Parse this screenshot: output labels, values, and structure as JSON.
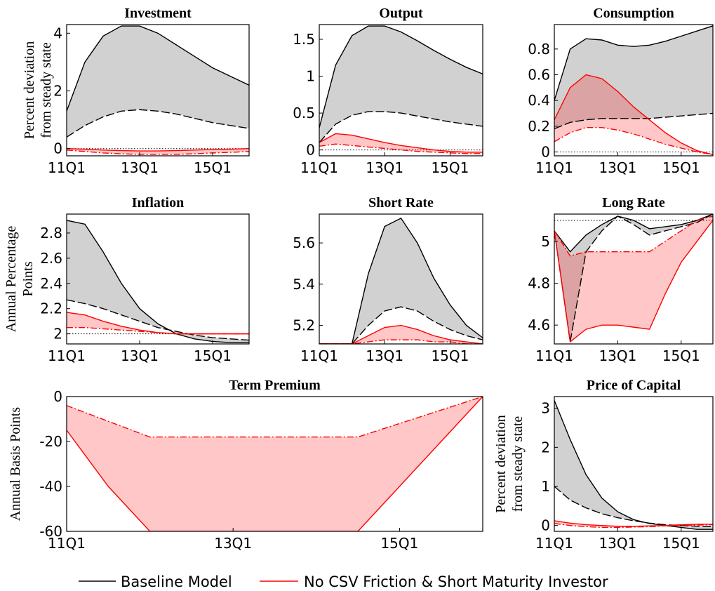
{
  "chart_data": [
    {
      "type": "line",
      "title": "Investment",
      "ylabel": [
        "Percent deviation",
        "from steady state"
      ],
      "categories": [
        "11Q1",
        null,
        null,
        null,
        "13Q1",
        null,
        null,
        null,
        "15Q1",
        null,
        null
      ],
      "ylim": [
        -0.25,
        4.3
      ],
      "yticks": [
        0,
        2,
        4
      ],
      "refline": 0,
      "series": [
        {
          "color": "#000000",
          "style": "solid",
          "values": [
            1.3,
            3.0,
            3.9,
            4.25,
            4.25,
            4.0,
            3.6,
            3.2,
            2.8,
            2.5,
            2.2
          ]
        },
        {
          "color": "#000000",
          "style": "dashed",
          "values": [
            0.4,
            0.8,
            1.1,
            1.3,
            1.35,
            1.3,
            1.2,
            1.05,
            0.9,
            0.8,
            0.7
          ]
        },
        {
          "color": "#ff0000",
          "style": "solid",
          "values": [
            0.0,
            -0.02,
            -0.05,
            -0.07,
            -0.08,
            -0.08,
            -0.07,
            -0.05,
            -0.03,
            -0.02,
            0.0
          ]
        },
        {
          "color": "#ff0000",
          "style": "dashdot",
          "values": [
            -0.05,
            -0.1,
            -0.15,
            -0.18,
            -0.2,
            -0.2,
            -0.2,
            -0.18,
            -0.15,
            -0.13,
            -0.1
          ]
        }
      ]
    },
    {
      "type": "line",
      "title": "Output",
      "categories": [
        "11Q1",
        null,
        null,
        null,
        "13Q1",
        null,
        null,
        null,
        "15Q1",
        null,
        null
      ],
      "ylim": [
        -0.08,
        1.7
      ],
      "yticks": [
        0,
        0.5,
        1,
        1.5
      ],
      "refline": 0,
      "series": [
        {
          "color": "#000000",
          "style": "solid",
          "values": [
            0.3,
            1.15,
            1.55,
            1.68,
            1.68,
            1.6,
            1.48,
            1.35,
            1.23,
            1.12,
            1.03
          ]
        },
        {
          "color": "#000000",
          "style": "dashed",
          "values": [
            0.1,
            0.35,
            0.47,
            0.52,
            0.52,
            0.5,
            0.46,
            0.42,
            0.38,
            0.35,
            0.32
          ]
        },
        {
          "color": "#ff0000",
          "style": "solid",
          "values": [
            0.1,
            0.22,
            0.2,
            0.15,
            0.1,
            0.06,
            0.03,
            0.0,
            -0.02,
            -0.03,
            -0.03
          ]
        },
        {
          "color": "#ff0000",
          "style": "dashdot",
          "values": [
            0.05,
            0.08,
            0.06,
            0.04,
            0.02,
            0.0,
            -0.02,
            -0.03,
            -0.04,
            -0.05,
            -0.05
          ]
        }
      ]
    },
    {
      "type": "line",
      "title": "Consumption",
      "categories": [
        "11Q1",
        null,
        null,
        null,
        "13Q1",
        null,
        null,
        null,
        "15Q1",
        null,
        null
      ],
      "ylim": [
        -0.03,
        0.99
      ],
      "yticks": [
        0,
        0.2,
        0.4,
        0.6,
        0.8
      ],
      "refline": 0,
      "series": [
        {
          "color": "#000000",
          "style": "solid",
          "values": [
            0.4,
            0.8,
            0.88,
            0.87,
            0.83,
            0.82,
            0.83,
            0.86,
            0.9,
            0.94,
            0.98
          ]
        },
        {
          "color": "#000000",
          "style": "dashed",
          "values": [
            0.18,
            0.23,
            0.25,
            0.26,
            0.26,
            0.26,
            0.26,
            0.27,
            0.28,
            0.29,
            0.3
          ]
        },
        {
          "color": "#ff0000",
          "style": "solid",
          "values": [
            0.25,
            0.5,
            0.6,
            0.57,
            0.47,
            0.35,
            0.25,
            0.15,
            0.07,
            0.01,
            -0.02
          ]
        },
        {
          "color": "#ff0000",
          "style": "dashdot",
          "values": [
            0.08,
            0.15,
            0.19,
            0.19,
            0.17,
            0.14,
            0.1,
            0.06,
            0.03,
            0.0,
            -0.02
          ]
        }
      ]
    },
    {
      "type": "line",
      "title": "Inflation",
      "ylabel": [
        "Annual Percentage",
        "Points"
      ],
      "categories": [
        "11Q1",
        null,
        null,
        null,
        "13Q1",
        null,
        null,
        null,
        "15Q1",
        null,
        null
      ],
      "ylim": [
        1.92,
        2.95
      ],
      "yticks": [
        2,
        2.2,
        2.4,
        2.6,
        2.8
      ],
      "refline": 2,
      "series": [
        {
          "color": "#000000",
          "style": "solid",
          "values": [
            2.9,
            2.87,
            2.65,
            2.4,
            2.2,
            2.08,
            2.0,
            1.96,
            1.94,
            1.93,
            1.93
          ]
        },
        {
          "color": "#000000",
          "style": "dashed",
          "values": [
            2.27,
            2.24,
            2.2,
            2.15,
            2.1,
            2.05,
            2.02,
            1.99,
            1.97,
            1.96,
            1.95
          ]
        },
        {
          "color": "#ff0000",
          "style": "solid",
          "values": [
            2.17,
            2.15,
            2.1,
            2.06,
            2.03,
            2.01,
            2.0,
            2.0,
            2.0,
            2.0,
            2.0
          ]
        },
        {
          "color": "#ff0000",
          "style": "dashdot",
          "values": [
            2.05,
            2.05,
            2.04,
            2.03,
            2.02,
            2.01,
            2.0,
            2.0,
            2.0,
            2.0,
            2.0
          ]
        }
      ]
    },
    {
      "type": "line",
      "title": "Short Rate",
      "categories": [
        "11Q1",
        null,
        null,
        null,
        "13Q1",
        null,
        null,
        null,
        "15Q1",
        null,
        null
      ],
      "ylim": [
        5.11,
        5.74
      ],
      "yticks": [
        5.2,
        5.4,
        5.6
      ],
      "refline": 5.11,
      "series": [
        {
          "color": "#000000",
          "style": "solid",
          "values": [
            5.11,
            5.11,
            5.11,
            5.45,
            5.68,
            5.72,
            5.6,
            5.43,
            5.3,
            5.2,
            5.14
          ]
        },
        {
          "color": "#000000",
          "style": "dashed",
          "values": [
            5.11,
            5.11,
            5.11,
            5.2,
            5.27,
            5.29,
            5.27,
            5.22,
            5.18,
            5.15,
            5.13
          ]
        },
        {
          "color": "#ff0000",
          "style": "solid",
          "values": [
            5.11,
            5.11,
            5.11,
            5.15,
            5.19,
            5.2,
            5.18,
            5.15,
            5.13,
            5.12,
            5.11
          ]
        },
        {
          "color": "#ff0000",
          "style": "dashdot",
          "values": [
            5.11,
            5.11,
            5.11,
            5.12,
            5.13,
            5.13,
            5.13,
            5.12,
            5.12,
            5.11,
            5.11
          ]
        }
      ]
    },
    {
      "type": "line",
      "title": "Long Rate",
      "categories": [
        "11Q1",
        null,
        null,
        null,
        "13Q1",
        null,
        null,
        null,
        "15Q1",
        null,
        null
      ],
      "ylim": [
        4.51,
        5.13
      ],
      "yticks": [
        4.6,
        4.8,
        5
      ],
      "refline": 5.1,
      "series": [
        {
          "color": "#000000",
          "style": "solid",
          "values": [
            5.05,
            4.95,
            5.03,
            5.08,
            5.12,
            5.1,
            5.06,
            5.07,
            5.08,
            5.1,
            5.13
          ]
        },
        {
          "color": "#000000",
          "style": "dashed",
          "values": [
            5.05,
            4.52,
            4.95,
            5.05,
            5.12,
            5.08,
            5.03,
            5.05,
            5.07,
            5.09,
            5.13
          ]
        },
        {
          "color": "#ff0000",
          "style": "dashdot",
          "values": [
            5.05,
            4.93,
            4.95,
            4.95,
            4.95,
            4.95,
            4.95,
            5.0,
            5.05,
            5.1,
            5.12
          ]
        },
        {
          "color": "#ff0000",
          "style": "solid",
          "values": [
            5.05,
            4.52,
            4.58,
            4.6,
            4.6,
            4.59,
            4.58,
            4.75,
            4.9,
            5.0,
            5.1
          ]
        }
      ]
    },
    {
      "type": "line",
      "title": "Term Premium",
      "ylabel": [
        "Annual Basis Points"
      ],
      "categories": [
        "11Q1",
        null,
        null,
        null,
        "13Q1",
        null,
        null,
        null,
        "15Q1",
        null,
        null
      ],
      "ylim": [
        -60,
        0
      ],
      "yticks": [
        0,
        -20,
        -40,
        -60
      ],
      "series": [
        {
          "color": "#ff0000",
          "style": "dashdot",
          "values": [
            -4,
            -11,
            -18,
            -18,
            -18,
            -18,
            -18,
            -18,
            -12,
            -6,
            0
          ]
        },
        {
          "color": "#ff0000",
          "style": "solid",
          "values": [
            -15,
            -40,
            -60,
            -60,
            -60,
            -60,
            -60,
            -60,
            -40,
            -20,
            0
          ]
        }
      ]
    },
    {
      "type": "line",
      "title": "Price of Capital",
      "ylabel": [
        "Percent deviation",
        "from steady state"
      ],
      "categories": [
        "11Q1",
        null,
        null,
        null,
        "13Q1",
        null,
        null,
        null,
        "15Q1",
        null,
        null
      ],
      "ylim": [
        -0.15,
        3.3
      ],
      "yticks": [
        0,
        1,
        2,
        3
      ],
      "series": [
        {
          "color": "#000000",
          "style": "solid",
          "values": [
            3.2,
            2.2,
            1.3,
            0.7,
            0.35,
            0.15,
            0.05,
            0.0,
            -0.05,
            -0.1,
            -0.1
          ]
        },
        {
          "color": "#000000",
          "style": "dashed",
          "values": [
            1.0,
            0.65,
            0.45,
            0.3,
            0.2,
            0.12,
            0.06,
            0.02,
            0.0,
            -0.02,
            -0.03
          ]
        },
        {
          "color": "#ff0000",
          "style": "solid",
          "values": [
            0.12,
            0.06,
            0.02,
            0.0,
            -0.02,
            -0.02,
            -0.01,
            0.0,
            0.02,
            0.03,
            0.03
          ]
        },
        {
          "color": "#ff0000",
          "style": "dashdot",
          "values": [
            0.05,
            0.0,
            -0.03,
            -0.05,
            -0.05,
            -0.04,
            -0.03,
            -0.01,
            0.0,
            0.01,
            0.02
          ]
        }
      ]
    }
  ],
  "legend": [
    {
      "name": "Baseline Model",
      "color": "#000000"
    },
    {
      "name": "No CSV Friction & Short Maturity Investor",
      "color": "#ff0000"
    }
  ]
}
